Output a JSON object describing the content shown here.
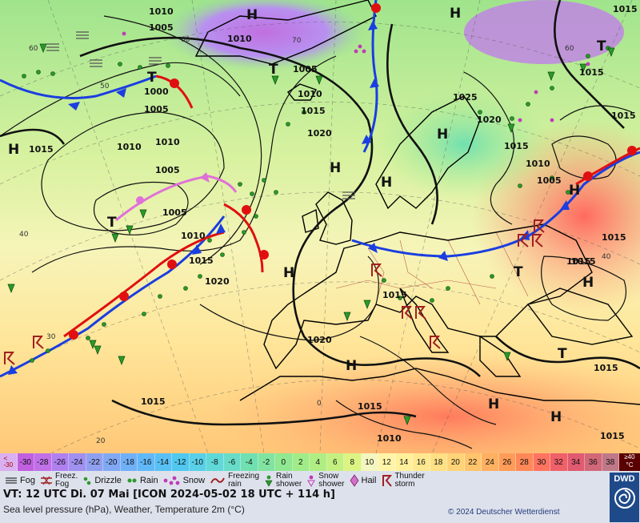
{
  "map": {
    "pressure_labels": [
      {
        "t": "1010"
      },
      {
        "t": "1005"
      },
      {
        "t": "1010"
      },
      {
        "t": "1000"
      },
      {
        "t": "1005"
      },
      {
        "t": "1010"
      },
      {
        "t": "1010"
      },
      {
        "t": "1015"
      },
      {
        "t": "1005"
      },
      {
        "t": "1005"
      },
      {
        "t": "1010"
      },
      {
        "t": "1015"
      },
      {
        "t": "1020"
      },
      {
        "t": "1005"
      },
      {
        "t": "1010"
      },
      {
        "t": "1015"
      },
      {
        "t": "1020"
      },
      {
        "t": "1025"
      },
      {
        "t": "1020"
      },
      {
        "t": "1015"
      },
      {
        "t": "1010"
      },
      {
        "t": "1005"
      },
      {
        "t": "1015"
      },
      {
        "t": "1015"
      },
      {
        "t": "1015"
      },
      {
        "t": "1015"
      },
      {
        "t": "1020"
      },
      {
        "t": "1015"
      },
      {
        "t": "1015"
      },
      {
        "t": "1015"
      },
      {
        "t": "1015"
      },
      {
        "t": "1010"
      },
      {
        "t": "1015"
      },
      {
        "t": "1015"
      },
      {
        "t": "1015"
      }
    ],
    "centers": [
      {
        "t": "H"
      },
      {
        "t": "H"
      },
      {
        "t": "T"
      },
      {
        "t": "T"
      },
      {
        "t": "H"
      },
      {
        "t": "T"
      },
      {
        "t": "H"
      },
      {
        "t": "H"
      },
      {
        "t": "H"
      },
      {
        "t": "H"
      },
      {
        "t": "T"
      },
      {
        "t": "H"
      },
      {
        "t": "T"
      },
      {
        "t": "T"
      },
      {
        "t": "H"
      },
      {
        "t": "H"
      },
      {
        "t": "H"
      },
      {
        "t": "H"
      }
    ],
    "grid_labels": [
      {
        "t": "60"
      },
      {
        "t": "70"
      },
      {
        "t": "60"
      },
      {
        "t": "50"
      },
      {
        "t": "40"
      },
      {
        "t": "30"
      },
      {
        "t": "20"
      },
      {
        "t": "0"
      },
      {
        "t": "40"
      },
      {
        "t": "60"
      }
    ]
  },
  "legend": {
    "scale_low": "<\n-30",
    "scale": [
      "-30",
      "-28",
      "-26",
      "-24",
      "-22",
      "-20",
      "-18",
      "-16",
      "-14",
      "-12",
      "-10",
      "-8",
      "-6",
      "-4",
      "-2",
      "0",
      "2",
      "4",
      "6",
      "8",
      "10",
      "12",
      "14",
      "16",
      "18",
      "20",
      "22",
      "24",
      "26",
      "28",
      "30",
      "32",
      "34",
      "36",
      "38"
    ],
    "scale_colors": [
      "#c060e0",
      "#c070e8",
      "#b080f0",
      "#a090f0",
      "#90a0f0",
      "#80a8f4",
      "#70b0f8",
      "#60b8f8",
      "#58c0f4",
      "#50c8f0",
      "#58d0e8",
      "#60d8d8",
      "#68dcc8",
      "#70e0b0",
      "#80e4a0",
      "#90e890",
      "#a0ec88",
      "#b0ee84",
      "#c4f080",
      "#dcf484",
      "#f4f6c0",
      "#fff4a8",
      "#fff09c",
      "#ffe890",
      "#ffe084",
      "#ffd478",
      "#ffc46c",
      "#ffb060",
      "#ff9c58",
      "#ff8858",
      "#ff7460",
      "#f06068",
      "#e05a70",
      "#d06878",
      "#c07888"
    ],
    "scale_high": "≥40\n°C",
    "symbols": [
      {
        "label": "Fog"
      },
      {
        "label": "Freez.\nFog"
      },
      {
        "label": "Drizzle"
      },
      {
        "label": "Rain"
      },
      {
        "label": "Snow"
      },
      {
        "label": "Freezing\nrain"
      },
      {
        "label": "Rain\nshower"
      },
      {
        "label": "Snow\nshower"
      },
      {
        "label": "Hail"
      },
      {
        "label": "Thunder\nstorm"
      }
    ],
    "valid_time": "VT: 12 UTC Di.  07 Mai [ICON 2024-05-02  18 UTC + 114 h]",
    "description": "Sea level pressure (hPa), Weather, Temperature 2m (°C)",
    "copyright": "© 2024 Deutscher Wetterdienst",
    "logo_text": "DWD"
  }
}
